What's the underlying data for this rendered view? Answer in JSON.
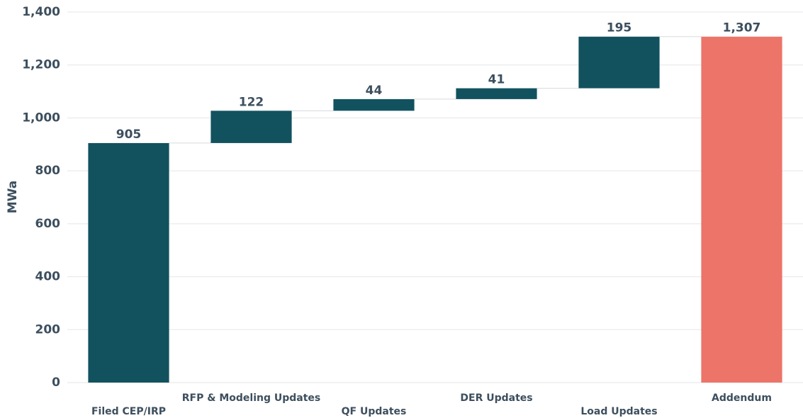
{
  "chart_data": {
    "type": "waterfall",
    "y_label": "MWa",
    "categories": [
      "Filed CEP/IRP",
      "RFP & Modeling Updates",
      "QF Updates",
      "DER Updates",
      "Load Updates",
      "Addendum"
    ],
    "values": [
      905,
      122,
      44,
      41,
      195,
      1307
    ],
    "value_labels": [
      "905",
      "122",
      "44",
      "41",
      "195",
      "1,307"
    ],
    "measure": [
      "absolute",
      "relative",
      "relative",
      "relative",
      "relative",
      "total"
    ],
    "colors": [
      "#12525f",
      "#12525f",
      "#12525f",
      "#12525f",
      "#12525f",
      "#ec7468"
    ],
    "ylim": [
      0,
      1400
    ],
    "yticks": [
      0,
      200,
      400,
      600,
      800,
      {
        "value": 1000,
        "label": "1,000"
      },
      {
        "value": 1200,
        "label": "1,200"
      },
      {
        "value": 1400,
        "label": "1,400"
      }
    ],
    "grid": true
  }
}
